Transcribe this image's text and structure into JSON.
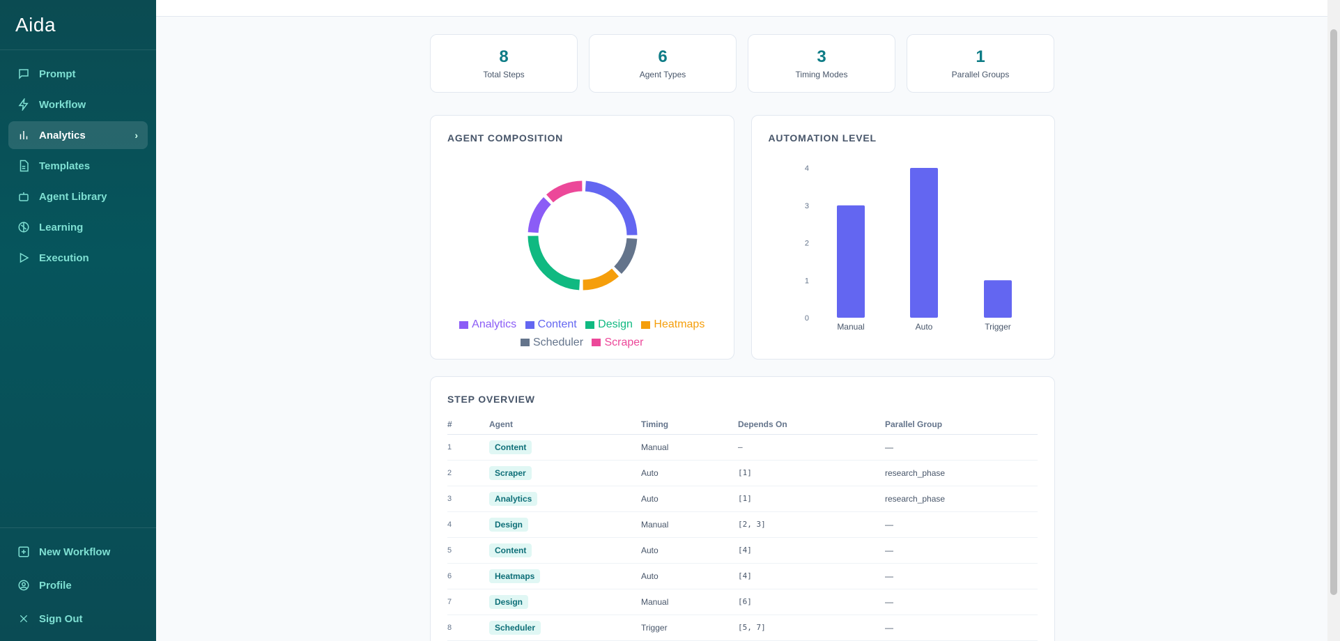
{
  "app": {
    "logo": "Aida"
  },
  "sidebar": {
    "items": [
      {
        "label": "Prompt",
        "icon": "chat-icon"
      },
      {
        "label": "Workflow",
        "icon": "bolt-icon"
      },
      {
        "label": "Analytics",
        "icon": "bar-chart-icon",
        "active": true
      },
      {
        "label": "Templates",
        "icon": "document-icon"
      },
      {
        "label": "Agent Library",
        "icon": "robot-icon"
      },
      {
        "label": "Learning",
        "icon": "brain-icon"
      },
      {
        "label": "Execution",
        "icon": "play-icon"
      }
    ],
    "bottom": [
      {
        "label": "New Workflow",
        "icon": "plus-square-icon"
      },
      {
        "label": "Profile",
        "icon": "user-circle-icon"
      },
      {
        "label": "Sign Out",
        "icon": "close-icon"
      }
    ]
  },
  "stats": [
    {
      "value": "8",
      "label": "Total Steps"
    },
    {
      "value": "6",
      "label": "Agent Types"
    },
    {
      "value": "3",
      "label": "Timing Modes"
    },
    {
      "value": "1",
      "label": "Parallel Groups"
    }
  ],
  "composition": {
    "title": "AGENT COMPOSITION",
    "legend": [
      {
        "label": "Analytics",
        "color": "#8b5cf6"
      },
      {
        "label": "Content",
        "color": "#6366f1"
      },
      {
        "label": "Design",
        "color": "#10b981"
      },
      {
        "label": "Heatmaps",
        "color": "#f59e0b"
      },
      {
        "label": "Scheduler",
        "color": "#64748b"
      },
      {
        "label": "Scraper",
        "color": "#ec4899"
      }
    ]
  },
  "automation": {
    "title": "AUTOMATION LEVEL"
  },
  "chart_data": [
    {
      "type": "pie",
      "title": "AGENT COMPOSITION",
      "categories": [
        "Content",
        "Scheduler",
        "Heatmaps",
        "Design",
        "Analytics",
        "Scraper"
      ],
      "values": [
        2,
        1,
        1,
        2,
        1,
        1
      ],
      "colors": [
        "#6366f1",
        "#64748b",
        "#f59e0b",
        "#10b981",
        "#8b5cf6",
        "#ec4899"
      ],
      "donut": true,
      "legend": "bottom"
    },
    {
      "type": "bar",
      "title": "AUTOMATION LEVEL",
      "categories": [
        "Manual",
        "Auto",
        "Trigger"
      ],
      "values": [
        3,
        4,
        1
      ],
      "ylim": [
        0,
        4
      ],
      "yticks": [
        "0",
        "1",
        "2",
        "3",
        "4"
      ],
      "color": "#6366f1",
      "grid": false
    }
  ],
  "steps": {
    "title": "STEP OVERVIEW",
    "columns": [
      "#",
      "Agent",
      "Timing",
      "Depends On",
      "Parallel Group"
    ],
    "rows": [
      {
        "n": "1",
        "agent": "Content",
        "timing": "Manual",
        "depends": "–",
        "group": "—"
      },
      {
        "n": "2",
        "agent": "Scraper",
        "timing": "Auto",
        "depends": "[1]",
        "group": "research_phase"
      },
      {
        "n": "3",
        "agent": "Analytics",
        "timing": "Auto",
        "depends": "[1]",
        "group": "research_phase"
      },
      {
        "n": "4",
        "agent": "Design",
        "timing": "Manual",
        "depends": "[2, 3]",
        "group": "—"
      },
      {
        "n": "5",
        "agent": "Content",
        "timing": "Auto",
        "depends": "[4]",
        "group": "—"
      },
      {
        "n": "6",
        "agent": "Heatmaps",
        "timing": "Auto",
        "depends": "[4]",
        "group": "—"
      },
      {
        "n": "7",
        "agent": "Design",
        "timing": "Manual",
        "depends": "[6]",
        "group": "—"
      },
      {
        "n": "8",
        "agent": "Scheduler",
        "timing": "Trigger",
        "depends": "[5, 7]",
        "group": "—"
      }
    ]
  }
}
